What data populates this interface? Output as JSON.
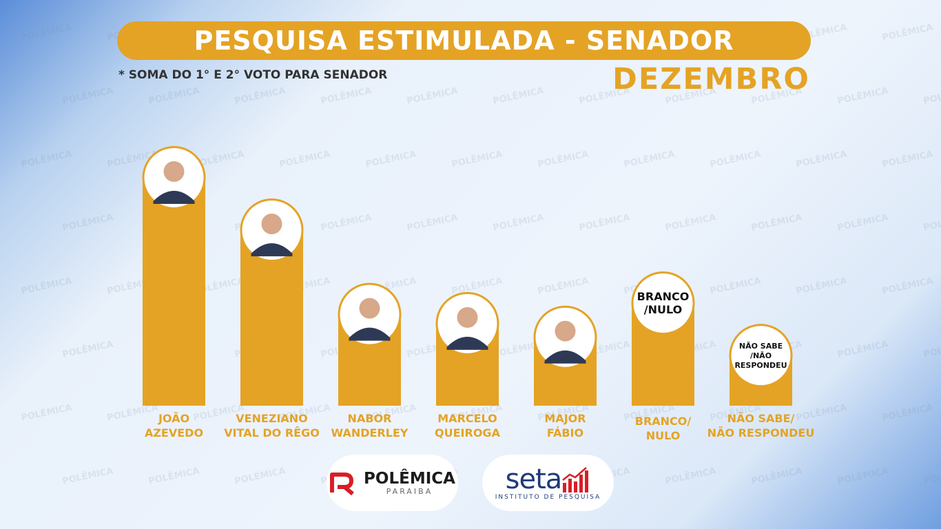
{
  "header": {
    "title": "PESQUISA ESTIMULADA - SENADOR",
    "footnote": "* SOMA DO 1° E 2° VOTO PARA SENADOR",
    "month": "DEZEMBRO"
  },
  "colors": {
    "accent": "#e4a325",
    "circle_border": "#e4a325",
    "circle_fill": "#ffffff"
  },
  "chart_data": {
    "type": "bar",
    "categories": [
      "JOÃO AZEVEDO",
      "VENEZIANO VITAL DO RÊGO",
      "NABOR WANDERLEY",
      "MARCELO QUEIROGA",
      "MAJOR FÁBIO",
      "BRANCO/ NULO",
      "NÃO SABE/ NÃO RESPONDEU"
    ],
    "label_lines": [
      [
        "JOÃO",
        "AZEVEDO"
      ],
      [
        "VENEZIANO",
        "VITAL DO RÊGO"
      ],
      [
        "NABOR",
        "WANDERLEY"
      ],
      [
        "MARCELO",
        "QUEIROGA"
      ],
      [
        "MAJOR",
        "FÁBIO"
      ],
      [
        "BRANCO/",
        "NULO"
      ],
      [
        "NÃO SABE/",
        "NÃO RESPONDEU"
      ]
    ],
    "circle_text": [
      [],
      [],
      [],
      [],
      [],
      [
        "BRANCO",
        "/NULO"
      ],
      [
        "NÃO SABE",
        "/NÃO",
        "RESPONDEU"
      ]
    ],
    "circle_kind": [
      "photo",
      "photo",
      "photo",
      "photo",
      "photo",
      "text",
      "text"
    ],
    "values": [
      100,
      77,
      40,
      36,
      30,
      45,
      22
    ],
    "value_unit": "relative bar height (no numbers printed)",
    "ylim": [
      0,
      100
    ],
    "grid": false,
    "xlabel": "",
    "ylabel": ""
  },
  "logos": {
    "polemica": {
      "name": "POLÊMICA",
      "sub": "PARAIBA"
    },
    "seta": {
      "name": "seta",
      "sub": "INSTITUTO DE PESQUISA"
    }
  }
}
